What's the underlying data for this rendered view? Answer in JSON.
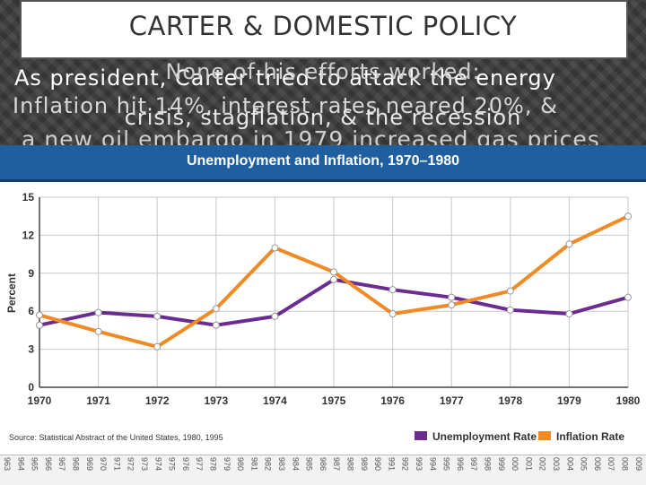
{
  "slide": {
    "title": "CARTER & DOMESTIC POLICY",
    "text_line1": "As president, Carter tried to attack the energy",
    "text_line2": "Inflation hit 14%, interest rates neared 20%, &",
    "text_line3": "a new oil embargo in 1979 increased gas prices",
    "overlay_line1": "None of his efforts worked:",
    "overlay_line2": "crisis, stagflation, & the recession"
  },
  "colors": {
    "unemployment": "#6b2c91",
    "inflation": "#f08a24",
    "grid": "#c8c8c8",
    "header": "#1f5fa0"
  },
  "chart_data": {
    "type": "line",
    "title": "Unemployment and Inflation, 1970–1980",
    "ylabel": "Percent",
    "xlabel": "",
    "x": [
      "1970",
      "1971",
      "1972",
      "1973",
      "1974",
      "1975",
      "1976",
      "1977",
      "1978",
      "1979",
      "1980"
    ],
    "ylim": [
      0,
      15
    ],
    "yticks": [
      "0",
      "3",
      "6",
      "9",
      "12",
      "15"
    ],
    "grid": true,
    "legend": "bottom-right",
    "series": [
      {
        "name": "Unemployment Rate",
        "values": [
          4.9,
          5.9,
          5.6,
          4.9,
          5.6,
          8.5,
          7.7,
          7.1,
          6.1,
          5.8,
          7.1
        ]
      },
      {
        "name": "Inflation Rate",
        "values": [
          5.7,
          4.4,
          3.2,
          6.2,
          11.0,
          9.1,
          5.8,
          6.5,
          7.6,
          11.3,
          13.5
        ]
      }
    ],
    "source": "Source: Statistical Abstract of the United States, 1980, 1995"
  },
  "background_years": [
    "963",
    "964",
    "965",
    "966",
    "967",
    "968",
    "969",
    "970",
    "971",
    "972",
    "973",
    "974",
    "975",
    "976",
    "977",
    "978",
    "979",
    "980",
    "981",
    "982",
    "983",
    "984",
    "985",
    "986",
    "987",
    "988",
    "989",
    "990",
    "991",
    "992",
    "993",
    "994",
    "995",
    "996",
    "997",
    "998",
    "999",
    "000",
    "001",
    "002",
    "003",
    "004",
    "005",
    "006",
    "007",
    "008",
    "009"
  ]
}
